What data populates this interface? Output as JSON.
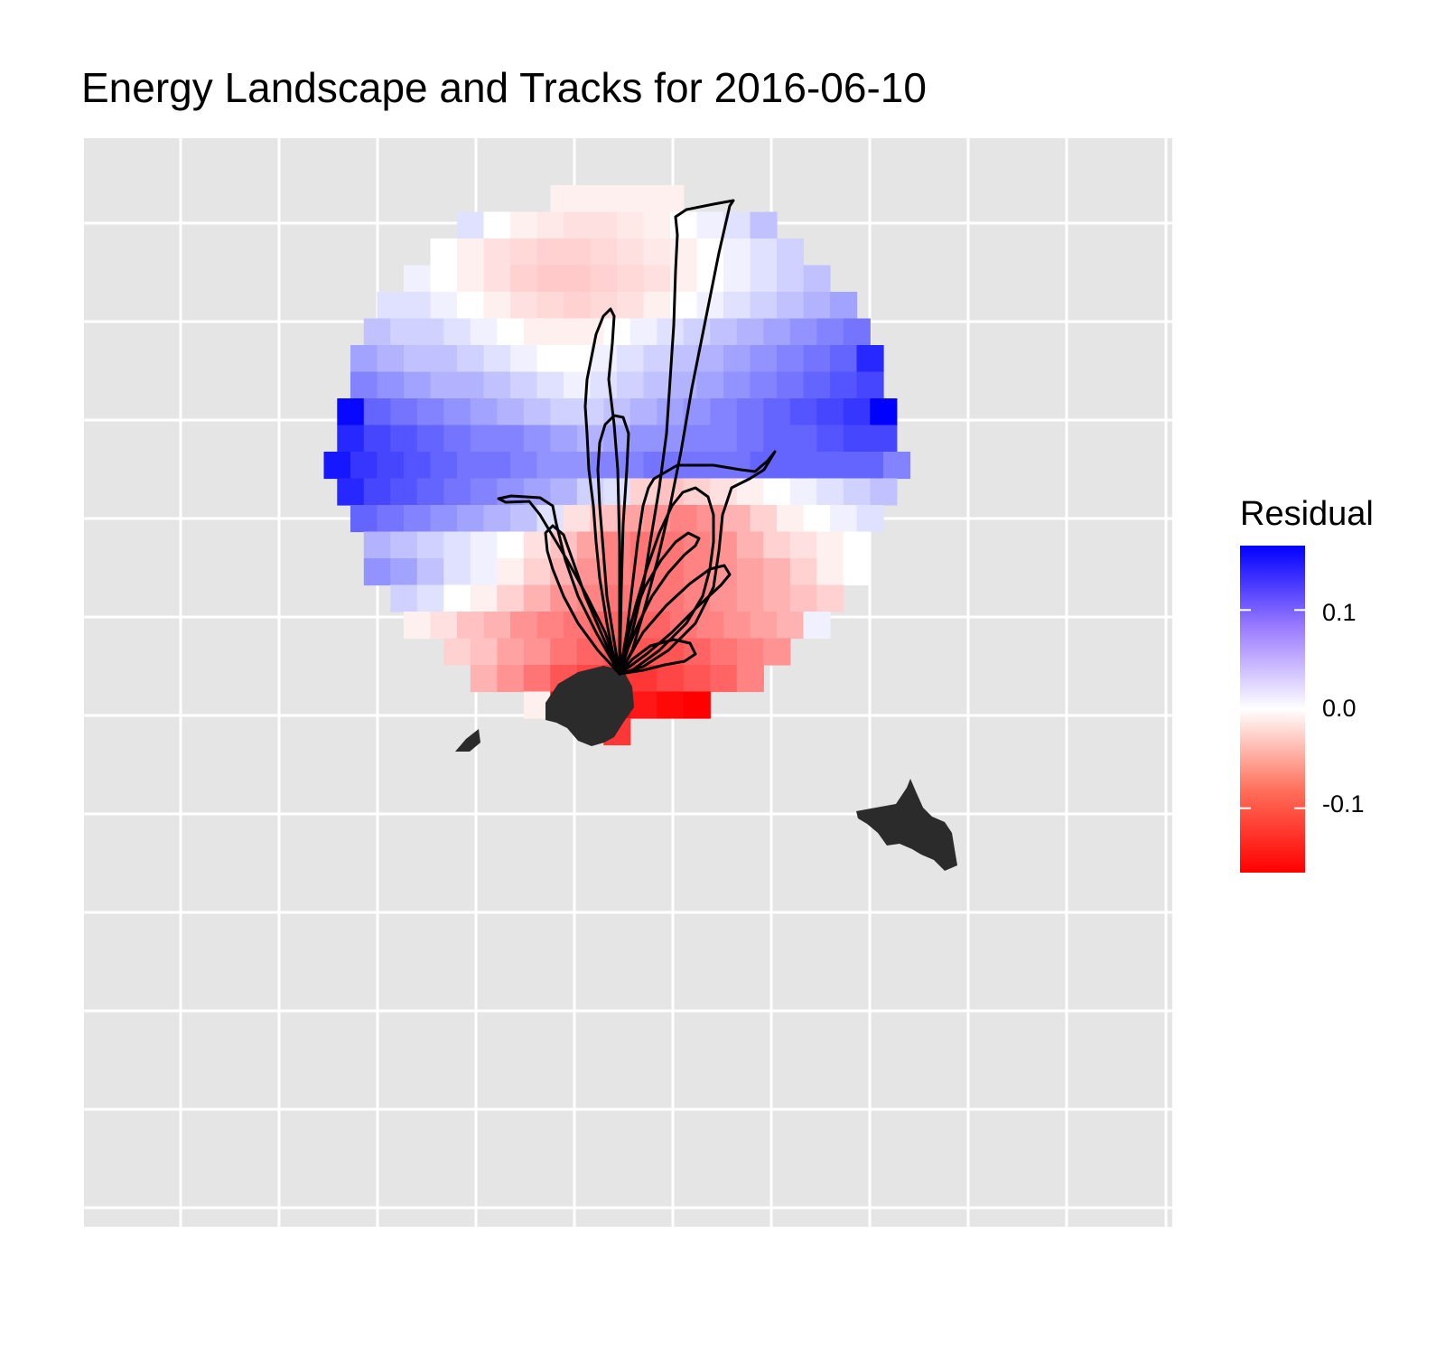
{
  "title": "Energy Landscape and Tracks for 2016-06-10",
  "legend": {
    "title": "Residual",
    "ticks": [
      {
        "value": 0.1,
        "label": "0.1"
      },
      {
        "value": 0.0,
        "label": "0.0"
      },
      {
        "value": -0.1,
        "label": "-0.1"
      }
    ],
    "range": [
      -0.165,
      0.165
    ]
  },
  "colors": {
    "low": "#ff0000",
    "mid": "#ffffff",
    "high": "#0000ff",
    "panel": "#e5e5e5",
    "grid": "#ffffff",
    "land": "#2b2b2b",
    "track": "#000000"
  },
  "chart_data": {
    "type": "heatmap",
    "title": "Energy Landscape and Tracks for 2016-06-10",
    "xlabel": "",
    "ylabel": "",
    "fill_variable": "Residual",
    "fill_range": [
      -0.165,
      0.165
    ],
    "color_scale": [
      "#ff0000",
      "#ffffff",
      "#0000ff"
    ],
    "grid": true,
    "legend_position": "right",
    "overlay": [
      "land masses (filled dark grey)",
      "animal tracks (black lines) radiating from colony"
    ],
    "rows": [
      {
        "row": 1,
        "cells": [
          -0.01,
          -0.01,
          -0.01,
          -0.01,
          -0.01
        ]
      },
      {
        "row": 2,
        "cells": [
          0.02,
          0.0,
          -0.01,
          -0.015,
          -0.02,
          -0.02,
          -0.015,
          -0.01,
          0.0,
          0.01,
          0.02,
          0.04
        ]
      },
      {
        "row": 3,
        "cells": [
          0.0,
          -0.01,
          -0.02,
          -0.025,
          -0.03,
          -0.03,
          -0.025,
          -0.02,
          -0.015,
          -0.01,
          0.0,
          0.01,
          0.02,
          0.03
        ]
      },
      {
        "row": 4,
        "cells": [
          0.01,
          0.0,
          -0.01,
          -0.02,
          -0.03,
          -0.035,
          -0.035,
          -0.03,
          -0.025,
          -0.02,
          -0.01,
          0.0,
          0.01,
          0.02,
          0.03,
          0.04
        ]
      },
      {
        "row": 5,
        "cells": [
          0.02,
          0.02,
          0.01,
          0.0,
          -0.01,
          -0.02,
          -0.025,
          -0.03,
          -0.025,
          -0.02,
          -0.01,
          0.0,
          0.01,
          0.02,
          0.03,
          0.04,
          0.05,
          0.06
        ]
      },
      {
        "row": 6,
        "cells": [
          0.04,
          0.03,
          0.03,
          0.02,
          0.01,
          0.0,
          -0.01,
          -0.01,
          -0.01,
          0.0,
          0.01,
          0.02,
          0.03,
          0.04,
          0.05,
          0.06,
          0.07,
          0.08,
          0.09
        ]
      },
      {
        "row": 7,
        "cells": [
          0.06,
          0.05,
          0.04,
          0.04,
          0.03,
          0.02,
          0.01,
          0.0,
          0.0,
          0.01,
          0.02,
          0.03,
          0.04,
          0.05,
          0.06,
          0.07,
          0.08,
          0.09,
          0.1,
          0.14
        ]
      },
      {
        "row": 8,
        "cells": [
          0.08,
          0.07,
          0.06,
          0.05,
          0.05,
          0.04,
          0.03,
          0.02,
          0.01,
          0.02,
          0.03,
          0.04,
          0.05,
          0.06,
          0.07,
          0.08,
          0.09,
          0.1,
          0.11,
          0.12
        ]
      },
      {
        "row": 9,
        "cells": [
          0.16,
          0.1,
          0.09,
          0.08,
          0.07,
          0.06,
          0.05,
          0.04,
          0.03,
          0.03,
          0.04,
          0.05,
          0.06,
          0.07,
          0.08,
          0.09,
          0.1,
          0.11,
          0.12,
          0.13,
          0.17
        ]
      },
      {
        "row": 10,
        "cells": [
          0.14,
          0.12,
          0.11,
          0.1,
          0.09,
          0.08,
          0.08,
          0.07,
          0.06,
          0.05,
          0.06,
          0.07,
          0.07,
          0.08,
          0.08,
          0.09,
          0.1,
          0.1,
          0.11,
          0.12,
          0.12
        ]
      },
      {
        "row": 11,
        "cells": [
          0.15,
          0.13,
          0.12,
          0.11,
          0.1,
          0.09,
          0.09,
          0.08,
          0.07,
          0.07,
          0.08,
          0.08,
          0.09,
          0.09,
          0.09,
          0.09,
          0.1,
          0.1,
          0.1,
          0.1,
          0.1,
          0.08
        ]
      },
      {
        "row": 12,
        "cells": [
          0.14,
          0.12,
          0.11,
          0.1,
          0.09,
          0.08,
          0.07,
          0.06,
          0.05,
          0.03,
          0.02,
          -0.03,
          -0.04,
          -0.03,
          -0.02,
          -0.01,
          0.0,
          0.01,
          0.02,
          0.03,
          0.04
        ]
      },
      {
        "row": 13,
        "cells": [
          0.1,
          0.09,
          0.08,
          0.07,
          0.06,
          0.05,
          0.04,
          0.02,
          -0.02,
          -0.04,
          -0.06,
          -0.07,
          -0.08,
          -0.07,
          -0.05,
          -0.03,
          -0.01,
          0.0,
          0.01,
          0.02
        ]
      },
      {
        "row": 14,
        "cells": [
          0.05,
          0.04,
          0.03,
          0.02,
          0.01,
          0.0,
          -0.02,
          -0.04,
          -0.06,
          -0.08,
          -0.09,
          -0.09,
          -0.08,
          -0.07,
          -0.05,
          -0.03,
          -0.02,
          -0.01,
          0.0
        ]
      },
      {
        "row": 15,
        "cells": [
          0.07,
          0.06,
          0.04,
          0.02,
          0.01,
          -0.01,
          -0.03,
          -0.05,
          -0.07,
          -0.08,
          -0.09,
          -0.09,
          -0.08,
          -0.07,
          -0.06,
          -0.05,
          -0.03,
          -0.01,
          0.0
        ]
      },
      {
        "row": 16,
        "cells": [
          0.03,
          0.02,
          0.0,
          -0.01,
          -0.03,
          -0.05,
          -0.07,
          -0.08,
          -0.09,
          -0.09,
          -0.09,
          -0.08,
          -0.07,
          -0.06,
          -0.05,
          -0.04,
          -0.03
        ]
      },
      {
        "row": 17,
        "cells": [
          -0.01,
          -0.02,
          -0.04,
          -0.05,
          -0.07,
          -0.08,
          -0.09,
          -0.1,
          -0.1,
          -0.1,
          -0.09,
          -0.08,
          -0.07,
          -0.06,
          -0.05,
          0.01
        ]
      },
      {
        "row": 18,
        "cells": [
          -0.03,
          -0.04,
          -0.06,
          -0.07,
          -0.09,
          -0.1,
          -0.11,
          -0.11,
          -0.11,
          -0.1,
          -0.09,
          -0.08,
          -0.07
        ]
      },
      {
        "row": 19,
        "cells": [
          -0.05,
          -0.07,
          -0.09,
          -0.11,
          -0.12,
          -0.13,
          -0.13,
          -0.12,
          -0.11,
          -0.1,
          -0.08
        ]
      },
      {
        "row": 20,
        "cells": [
          -0.01,
          -0.16,
          -0.16,
          -0.16,
          -0.15,
          -0.16,
          -0.17
        ]
      },
      {
        "row": 21,
        "cells": [
          -0.13
        ]
      }
    ]
  }
}
